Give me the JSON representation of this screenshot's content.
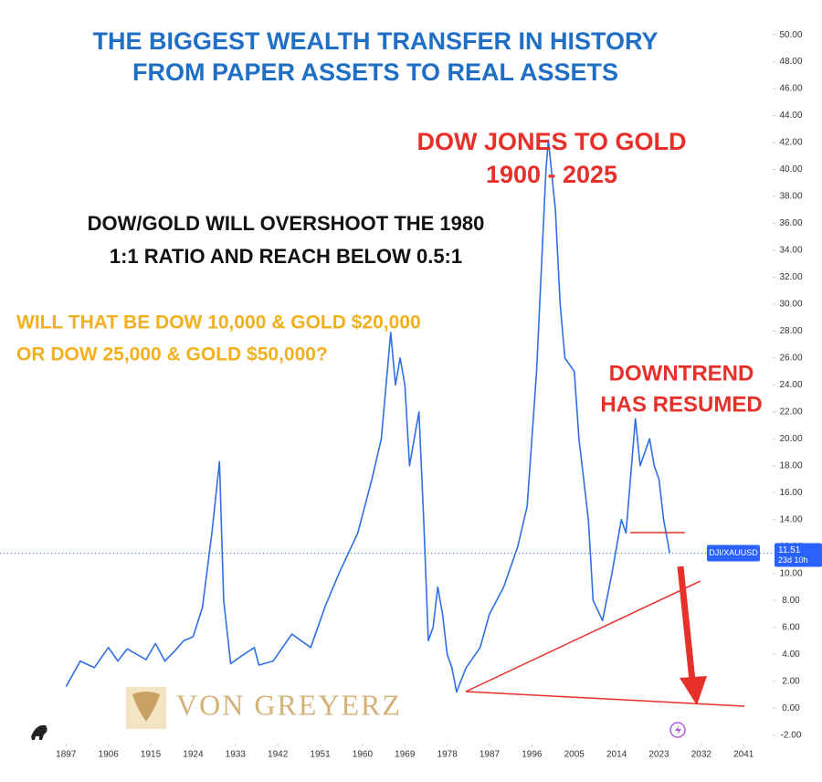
{
  "chart_data": {
    "type": "line",
    "title": [
      "THE BIGGEST WEALTH TRANSFER IN HISTORY",
      "FROM PAPER ASSETS TO REAL ASSETS"
    ],
    "annotations": [
      {
        "lines": [
          "DOW JONES TO GOLD",
          "1900 - 2025"
        ],
        "color": "#e8302a"
      },
      {
        "lines": [
          "DOW/GOLD WILL OVERSHOOT THE 1980",
          "1:1 RATIO AND REACH BELOW  0.5:1"
        ],
        "color": "#111111"
      },
      {
        "lines": [
          "WILL THAT BE DOW 10,000 & GOLD $20,000",
          "OR DOW 25,000 & GOLD $50,000?"
        ],
        "color": "#f2b01e"
      },
      {
        "lines": [
          "DOWNTREND",
          "HAS RESUMED"
        ],
        "color": "#e8302a"
      }
    ],
    "logo": "VON GREYERZ",
    "x": [
      1897,
      1900,
      1903,
      1906,
      1908,
      1910,
      1914,
      1916,
      1918,
      1920,
      1922,
      1924,
      1926,
      1928,
      1929.6,
      1930.5,
      1932,
      1934,
      1937,
      1938,
      1941,
      1945,
      1949,
      1952,
      1955,
      1959,
      1962,
      1964,
      1966,
      1967,
      1968,
      1969,
      1970,
      1972,
      1973,
      1974,
      1975,
      1976,
      1977,
      1978,
      1979,
      1980,
      1982,
      1985,
      1987,
      1990,
      1993,
      1995,
      1997,
      1999,
      1999.5,
      2001,
      2002,
      2003,
      2005,
      2006,
      2008,
      2009,
      2011,
      2013,
      2015,
      2016,
      2018,
      2019,
      2021,
      2022,
      2023,
      2024,
      2025.3
    ],
    "series": [
      {
        "name": "DJI/XAUUSD",
        "color": "#2f6fe4",
        "values": [
          1.6,
          3.5,
          3.0,
          4.5,
          3.5,
          4.4,
          3.6,
          4.8,
          3.5,
          4.2,
          5.0,
          5.3,
          7.5,
          13,
          18.3,
          8,
          3.3,
          3.8,
          4.5,
          3.2,
          3.5,
          5.5,
          4.5,
          7.5,
          10,
          13,
          17,
          20,
          27.9,
          24,
          26,
          24,
          18,
          22,
          14,
          5,
          6,
          9,
          7,
          4,
          3,
          1.2,
          3,
          4.5,
          7,
          9,
          12,
          15,
          25,
          40,
          42.2,
          37,
          30,
          26,
          25,
          20,
          14,
          8,
          6.5,
          10,
          14,
          13,
          21.5,
          18,
          20,
          18,
          17,
          14,
          11.51
        ]
      }
    ],
    "last_label": {
      "symbol": "DJI/XAUUSD",
      "value": 11.51,
      "countdown": "23d 10h"
    },
    "xlim": [
      1895,
      2046
    ],
    "xticks": [
      1897,
      1906,
      1915,
      1924,
      1933,
      1942,
      1951,
      1960,
      1969,
      1978,
      1987,
      1996,
      2005,
      2014,
      2023,
      2032,
      2041
    ],
    "ylim": [
      -2.5,
      51.5
    ],
    "yticks": [
      {
        "value": -2,
        "label": "-2.00"
      },
      {
        "value": 0,
        "label": "0.00"
      },
      {
        "value": 2,
        "label": "2.00"
      },
      {
        "value": 4,
        "label": "4.00"
      },
      {
        "value": 6,
        "label": "6.00"
      },
      {
        "value": 8,
        "label": "8.00"
      },
      {
        "value": 10,
        "label": "10.00"
      },
      {
        "value": 12,
        "label": "12.00"
      },
      {
        "value": 14,
        "label": "14.00"
      },
      {
        "value": 16,
        "label": "16.00"
      },
      {
        "value": 18,
        "label": "18.00"
      },
      {
        "value": 20,
        "label": "20.00"
      },
      {
        "value": 22,
        "label": "22.00"
      },
      {
        "value": 24,
        "label": "24.00"
      },
      {
        "value": 26,
        "label": "26.00"
      },
      {
        "value": 28,
        "label": "28.00"
      },
      {
        "value": 30,
        "label": "30.00"
      },
      {
        "value": 32,
        "label": "32.00"
      },
      {
        "value": 34,
        "label": "34.00"
      },
      {
        "value": 36,
        "label": "36.00"
      },
      {
        "value": 38,
        "label": "38.00"
      },
      {
        "value": 40,
        "label": "40.00"
      },
      {
        "value": 42,
        "label": "42.00"
      },
      {
        "value": 44,
        "label": "44.00"
      },
      {
        "value": 46,
        "label": "46.00"
      },
      {
        "value": 48,
        "label": "48.00"
      },
      {
        "value": 50,
        "label": "50.00"
      }
    ],
    "grid": false
  }
}
